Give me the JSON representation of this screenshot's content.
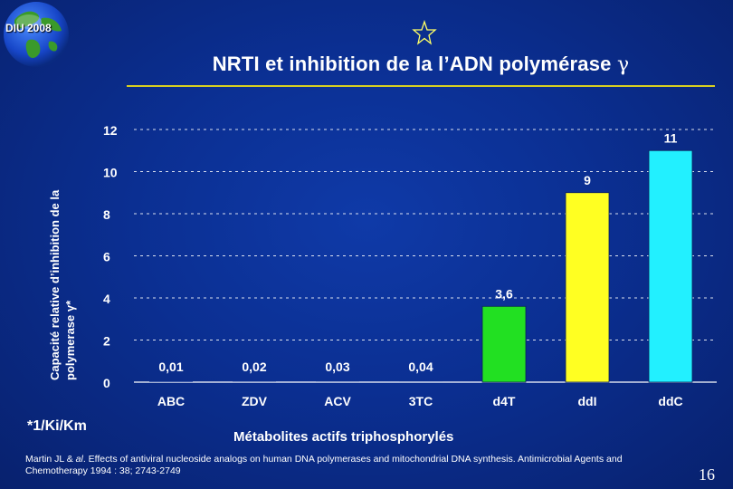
{
  "header": {
    "badge": "DIU 2008",
    "title": "NRTI et inhibition de la l’ADN polymérase",
    "title_symbol": "γ"
  },
  "chart_data": {
    "type": "bar",
    "title": "NRTI et inhibition de la l’ADN polymérase γ",
    "xlabel": "Métabolites actifs triphosphorylés",
    "ylabel_line1": "Capacité relative d’inhibition de la",
    "ylabel_line2": "polymerase γ*",
    "unit_note": "*1/Ki/Km",
    "categories": [
      "ABC",
      "ZDV",
      "ACV",
      "3TC",
      "d4T",
      "ddI",
      "ddC"
    ],
    "values": [
      0.01,
      0.02,
      0.03,
      0.04,
      3.6,
      9,
      11
    ],
    "value_labels": [
      "0,01",
      "0,02",
      "0,03",
      "0,04",
      "3,6",
      "9",
      "11"
    ],
    "bar_colors": [
      "#0b2f92",
      "#0b2f92",
      "#0b2f92",
      "#0b2f92",
      "#22e022",
      "#ffff22",
      "#22f0ff"
    ],
    "ylim": [
      0,
      12
    ],
    "yticks": [
      0,
      2,
      4,
      6,
      8,
      10,
      12
    ],
    "grid": true
  },
  "footer": {
    "citation_line1_pre": "Martin JL & ",
    "citation_etal": "al",
    "citation_line1_post": ". Effects of antiviral nucleoside analogs on human DNA polymerases and mitochondrial DNA synthesis. Antimicrobial Agents and",
    "citation_line2": "Chemotherapy 1994 : 38; 2743-2749",
    "page_number": "16"
  }
}
